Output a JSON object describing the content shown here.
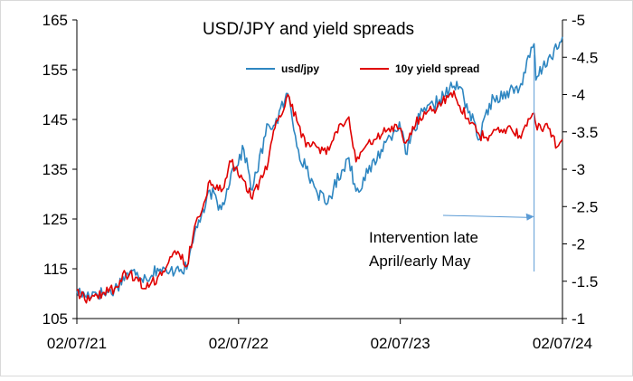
{
  "chart_data": {
    "type": "line",
    "title": "USD/JPY and yield spreads",
    "x_tick_labels": [
      "02/07/21",
      "02/07/22",
      "02/07/23",
      "02/07/24"
    ],
    "x_range": [
      "2021-07-02",
      "2024-07-02"
    ],
    "y_left": {
      "ticks": [
        "105",
        "115",
        "125",
        "135",
        "145",
        "155",
        "165"
      ],
      "ylim": [
        105,
        165
      ]
    },
    "y_right": {
      "ticks": [
        "-1",
        "-1.5",
        "-2",
        "-2.5",
        "-3",
        "-3.5",
        "-4",
        "-4.5",
        "-5"
      ],
      "ylim": [
        -1,
        -5
      ],
      "inverted": true
    },
    "legend_placement": "top-center",
    "grid": false,
    "annotation": {
      "lines": [
        "Intervention late",
        "April/early May"
      ],
      "points_to_x": "2024-04-29",
      "points_to_y_left": 125.5
    },
    "series": [
      {
        "name": "usd/jpy",
        "axis": "left",
        "color": "#2E86C1",
        "points": [
          [
            "2021-07-02",
            110.5
          ],
          [
            "2021-07-20",
            109.6
          ],
          [
            "2021-08-10",
            110.3
          ],
          [
            "2021-09-01",
            110.0
          ],
          [
            "2021-09-25",
            110.8
          ],
          [
            "2021-10-20",
            113.8
          ],
          [
            "2021-11-15",
            114.3
          ],
          [
            "2021-12-05",
            113.1
          ],
          [
            "2021-12-31",
            115.1
          ],
          [
            "2022-01-25",
            114.0
          ],
          [
            "2022-02-15",
            115.5
          ],
          [
            "2022-03-07",
            114.9
          ],
          [
            "2022-03-28",
            123.5
          ],
          [
            "2022-04-15",
            126.3
          ],
          [
            "2022-04-28",
            130.8
          ],
          [
            "2022-05-24",
            126.9
          ],
          [
            "2022-06-15",
            134.2
          ],
          [
            "2022-07-14",
            138.9
          ],
          [
            "2022-08-02",
            130.8
          ],
          [
            "2022-09-07",
            144.0
          ],
          [
            "2022-09-22",
            143.9
          ],
          [
            "2022-10-21",
            150.2
          ],
          [
            "2022-11-14",
            138.9
          ],
          [
            "2022-12-01",
            135.1
          ],
          [
            "2022-12-20",
            131.5
          ],
          [
            "2023-01-16",
            127.9
          ],
          [
            "2023-02-20",
            134.8
          ],
          [
            "2023-03-08",
            137.3
          ],
          [
            "2023-03-24",
            130.6
          ],
          [
            "2023-04-20",
            134.2
          ],
          [
            "2023-05-30",
            140.4
          ],
          [
            "2023-06-30",
            144.5
          ],
          [
            "2023-07-14",
            138.1
          ],
          [
            "2023-08-15",
            145.6
          ],
          [
            "2023-09-15",
            147.8
          ],
          [
            "2023-10-31",
            151.7
          ],
          [
            "2023-11-13",
            151.6
          ],
          [
            "2023-12-28",
            141.0
          ],
          [
            "2024-01-19",
            148.2
          ],
          [
            "2024-02-28",
            150.7
          ],
          [
            "2024-03-27",
            151.3
          ],
          [
            "2024-04-29",
            160.2
          ],
          [
            "2024-05-03",
            152.9
          ],
          [
            "2024-05-31",
            157.3
          ],
          [
            "2024-06-20",
            159.1
          ],
          [
            "2024-07-02",
            161.6
          ]
        ]
      },
      {
        "name": "10y yield spread",
        "axis": "right",
        "color": "#E00000",
        "points": [
          [
            "2021-07-02",
            -1.38
          ],
          [
            "2021-07-20",
            -1.25
          ],
          [
            "2021-08-10",
            -1.3
          ],
          [
            "2021-09-01",
            -1.35
          ],
          [
            "2021-09-25",
            -1.4
          ],
          [
            "2021-10-20",
            -1.6
          ],
          [
            "2021-11-15",
            -1.55
          ],
          [
            "2021-12-05",
            -1.4
          ],
          [
            "2021-12-31",
            -1.55
          ],
          [
            "2022-01-25",
            -1.75
          ],
          [
            "2022-02-15",
            -1.9
          ],
          [
            "2022-03-07",
            -1.7
          ],
          [
            "2022-03-28",
            -2.3
          ],
          [
            "2022-04-15",
            -2.55
          ],
          [
            "2022-04-28",
            -2.85
          ],
          [
            "2022-05-24",
            -2.7
          ],
          [
            "2022-06-15",
            -3.1
          ],
          [
            "2022-07-14",
            -2.85
          ],
          [
            "2022-08-02",
            -2.6
          ],
          [
            "2022-09-07",
            -3.1
          ],
          [
            "2022-09-22",
            -3.55
          ],
          [
            "2022-10-21",
            -4.0
          ],
          [
            "2022-11-14",
            -3.6
          ],
          [
            "2022-12-01",
            -3.3
          ],
          [
            "2022-12-20",
            -3.35
          ],
          [
            "2023-01-16",
            -3.2
          ],
          [
            "2023-02-20",
            -3.6
          ],
          [
            "2023-03-08",
            -3.7
          ],
          [
            "2023-03-24",
            -3.1
          ],
          [
            "2023-04-20",
            -3.35
          ],
          [
            "2023-05-30",
            -3.5
          ],
          [
            "2023-06-30",
            -3.55
          ],
          [
            "2023-07-14",
            -3.35
          ],
          [
            "2023-08-15",
            -3.7
          ],
          [
            "2023-09-15",
            -3.8
          ],
          [
            "2023-10-31",
            -4.05
          ],
          [
            "2023-11-13",
            -3.85
          ],
          [
            "2023-12-28",
            -3.45
          ],
          [
            "2024-01-19",
            -3.45
          ],
          [
            "2024-02-28",
            -3.55
          ],
          [
            "2024-03-27",
            -3.45
          ],
          [
            "2024-04-29",
            -3.75
          ],
          [
            "2024-05-03",
            -3.6
          ],
          [
            "2024-05-31",
            -3.55
          ],
          [
            "2024-06-20",
            -3.3
          ],
          [
            "2024-07-02",
            -3.4
          ]
        ]
      }
    ]
  }
}
